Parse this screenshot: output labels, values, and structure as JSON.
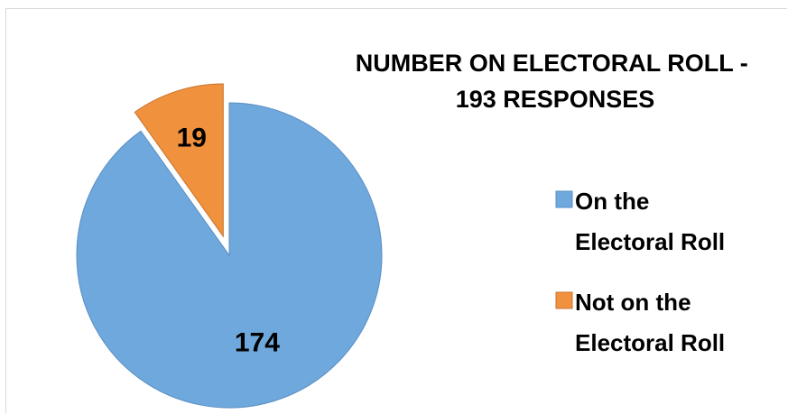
{
  "chart_data": {
    "type": "pie",
    "title_lines": [
      "NUMBER ON ELECTORAL ROLL -",
      "193 RESPONSES"
    ],
    "categories": [
      "On the Electoral Roll",
      "Not on the Electoral Roll"
    ],
    "values": [
      174,
      19
    ],
    "data_labels": [
      "174",
      "19"
    ],
    "colors": [
      "#6fa8dc",
      "#f0913e"
    ],
    "exploded": [
      false,
      true
    ],
    "legend": {
      "position": "right",
      "entries": [
        {
          "lines": [
            "On the",
            "Electoral Roll"
          ]
        },
        {
          "lines": [
            "Not on the",
            "Electoral Roll"
          ]
        }
      ]
    }
  }
}
